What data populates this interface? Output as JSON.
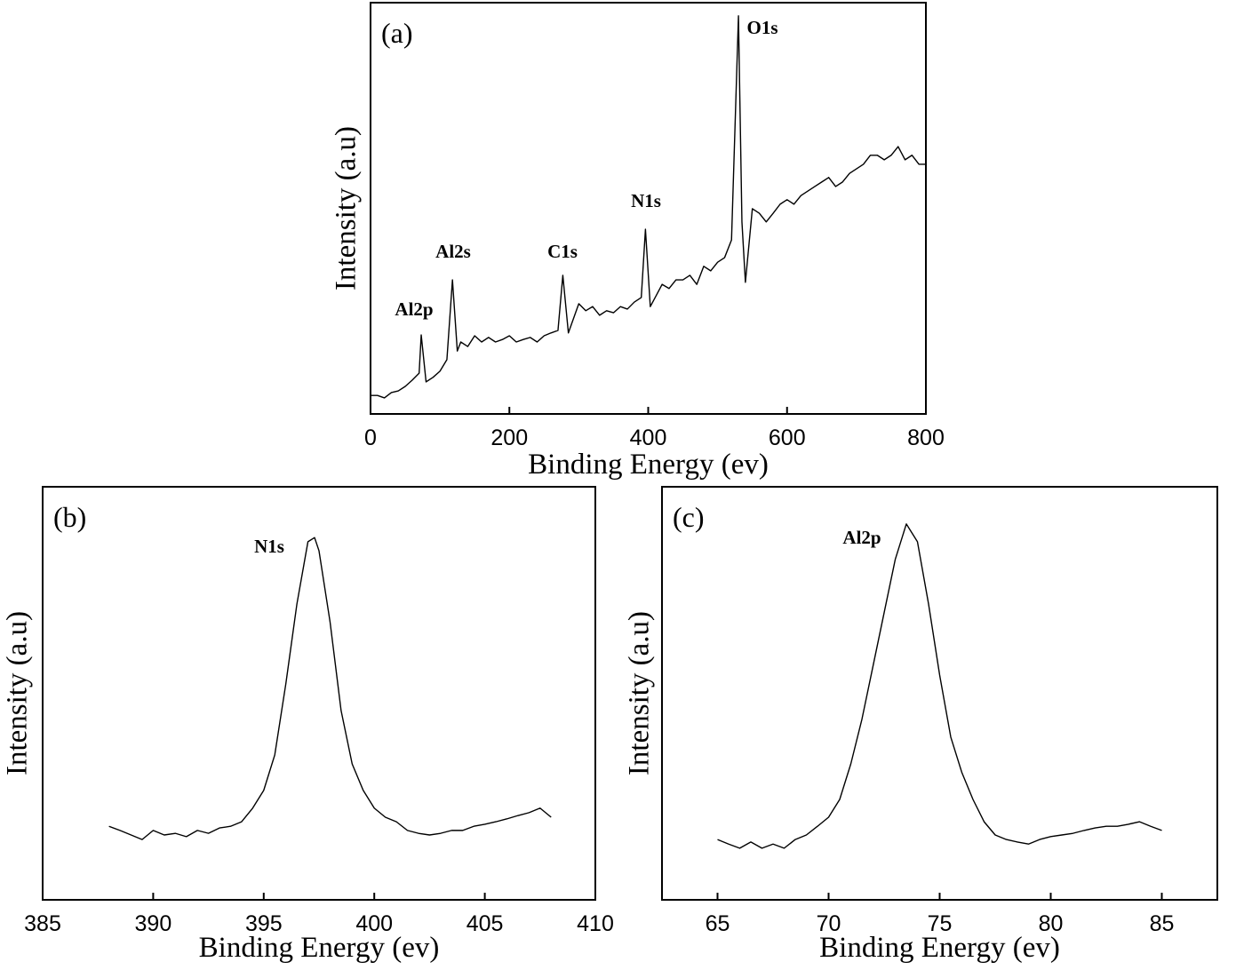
{
  "chart_data": [
    {
      "type": "line",
      "panel_label": "(a)",
      "x_label": "Binding Energy (ev)",
      "y_label": "Intensity (a.u)",
      "annotations": [
        "Al2p",
        "Al2s",
        "C1s",
        "N1s",
        "O1s"
      ],
      "xlim": [
        0,
        800
      ],
      "xticks": [
        0,
        200,
        400,
        600,
        800
      ],
      "ylim": [
        0,
        100
      ],
      "color": "#000000",
      "x": [
        0,
        10,
        20,
        30,
        40,
        50,
        60,
        70,
        73,
        80,
        90,
        100,
        110,
        118,
        125,
        130,
        140,
        150,
        160,
        170,
        180,
        190,
        200,
        210,
        220,
        230,
        240,
        250,
        260,
        270,
        277,
        285,
        300,
        310,
        320,
        330,
        340,
        350,
        360,
        370,
        380,
        390,
        396,
        403,
        410,
        420,
        430,
        440,
        450,
        460,
        470,
        480,
        490,
        500,
        510,
        520,
        530,
        535,
        540,
        550,
        560,
        570,
        580,
        590,
        600,
        610,
        620,
        630,
        640,
        650,
        660,
        670,
        680,
        690,
        700,
        710,
        720,
        730,
        740,
        750,
        760,
        770,
        780,
        790,
        800
      ],
      "values": [
        4.5,
        4.5,
        3.9,
        5.2,
        5.6,
        6.7,
        8.2,
        9.9,
        19.2,
        7.8,
        8.9,
        10.4,
        13.2,
        32.6,
        15.3,
        17.5,
        16.4,
        19.0,
        17.5,
        18.6,
        17.5,
        18.1,
        19.0,
        17.5,
        18.1,
        18.6,
        17.5,
        19.0,
        19.7,
        20.3,
        33.7,
        19.7,
        26.8,
        25.1,
        26.1,
        24.0,
        25.1,
        24.6,
        26.1,
        25.5,
        27.2,
        28.3,
        44.9,
        26.1,
        28.3,
        31.5,
        30.5,
        32.6,
        32.6,
        33.7,
        31.5,
        35.9,
        34.8,
        36.9,
        38.0,
        42.3,
        96.8,
        46.7,
        32.0,
        49.9,
        48.8,
        46.7,
        48.8,
        51.0,
        52.1,
        51.0,
        53.1,
        54.2,
        55.3,
        56.4,
        57.5,
        55.3,
        56.4,
        58.5,
        59.6,
        60.7,
        62.9,
        62.9,
        61.8,
        62.9,
        65.0,
        61.8,
        62.9,
        60.7,
        60.7
      ]
    },
    {
      "type": "line",
      "panel_label": "(b)",
      "x_label": "Binding Energy (ev)",
      "y_label": "Intensity (a.u)",
      "annotations": [
        "N1s"
      ],
      "xlim": [
        385,
        410
      ],
      "xticks": [
        385,
        390,
        395,
        400,
        405,
        410
      ],
      "ylim": [
        0,
        100
      ],
      "color": "#000000",
      "x": [
        388,
        388.5,
        389,
        389.5,
        390,
        390.5,
        391,
        391.5,
        392,
        392.5,
        393,
        393.5,
        394,
        394.5,
        395,
        395.5,
        396,
        396.5,
        397,
        397.3,
        397.5,
        398,
        398.5,
        399,
        399.5,
        400,
        400.5,
        401,
        401.5,
        402,
        402.5,
        403,
        403.5,
        404,
        404.5,
        405,
        405.5,
        406,
        406.5,
        407,
        407.5,
        408
      ],
      "values": [
        17.8,
        16.8,
        15.7,
        14.6,
        16.8,
        15.7,
        16.1,
        15.3,
        16.8,
        16.1,
        17.4,
        17.8,
        18.9,
        22.2,
        26.5,
        35.1,
        52.3,
        71.6,
        86.7,
        87.7,
        84.5,
        67.3,
        45.8,
        32.9,
        26.5,
        22.2,
        20.0,
        18.9,
        16.8,
        16.1,
        15.7,
        16.1,
        16.8,
        16.8,
        17.8,
        18.3,
        18.9,
        19.6,
        20.4,
        21.1,
        22.2,
        20.0
      ]
    },
    {
      "type": "line",
      "panel_label": "(c)",
      "x_label": "Binding Energy (ev)",
      "y_label": "Intensity (a.u)",
      "annotations": [
        "Al2p"
      ],
      "xlim": [
        62.5,
        87.5
      ],
      "xticks": [
        65,
        70,
        75,
        80,
        85
      ],
      "ylim": [
        0,
        100
      ],
      "color": "#000000",
      "x": [
        65,
        65.5,
        66,
        66.5,
        67,
        67.5,
        68,
        68.5,
        69,
        69.5,
        70,
        70.5,
        71,
        71.5,
        72,
        72.5,
        73,
        73.5,
        74,
        74.5,
        75,
        75.5,
        76,
        76.5,
        77,
        77.5,
        78,
        78.5,
        79,
        79.5,
        80,
        80.5,
        81,
        81.5,
        82,
        82.5,
        83,
        83.5,
        84,
        84.5,
        85
      ],
      "values": [
        14.6,
        13.5,
        12.5,
        14.0,
        12.5,
        13.5,
        12.5,
        14.6,
        15.7,
        17.8,
        20.0,
        24.3,
        32.9,
        43.7,
        56.6,
        69.5,
        82.4,
        91.0,
        86.7,
        71.6,
        54.4,
        39.4,
        30.8,
        24.3,
        18.9,
        15.7,
        14.6,
        14.0,
        13.5,
        14.6,
        15.3,
        15.7,
        16.1,
        16.8,
        17.4,
        17.8,
        17.8,
        18.3,
        18.9,
        17.8,
        16.8
      ]
    }
  ]
}
